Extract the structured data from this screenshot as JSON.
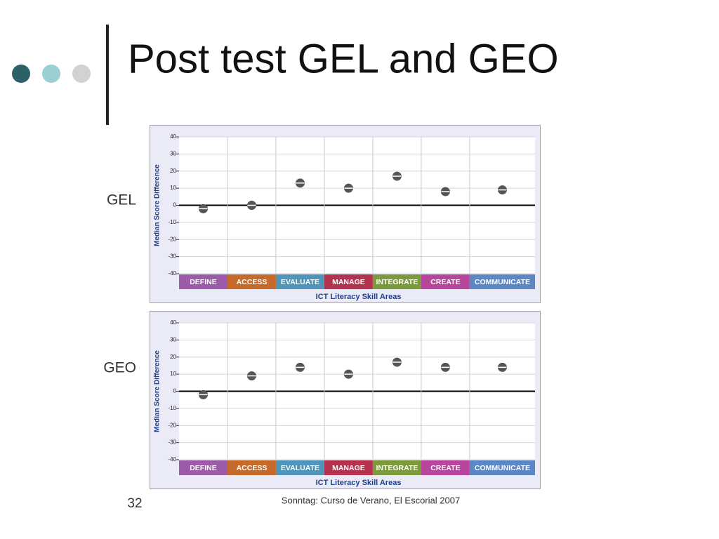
{
  "slide": {
    "title": "Post test GEL and GEO",
    "number": "32",
    "footer": "Sonntag: Curso de Verano, El Escorial 2007"
  },
  "chart_data": [
    {
      "type": "dot",
      "title": "GEL",
      "y_label": "Median Score Difference",
      "x_label": "ICT Literacy Skill Areas",
      "categories": [
        "DEFINE",
        "ACCESS",
        "EVALUATE",
        "MANAGE",
        "INTEGRATE",
        "CREATE",
        "COMMUNICATE"
      ],
      "category_colors": [
        "#9c5ba8",
        "#c66a2c",
        "#4e95b9",
        "#b5324f",
        "#7b9a3b",
        "#b7459b",
        "#5b87c4"
      ],
      "values": [
        -2,
        0,
        13,
        10,
        17,
        8,
        9
      ],
      "color": "#555555",
      "ylim": [
        -40,
        40
      ],
      "yticks": [
        -40,
        -30,
        -20,
        -10,
        0,
        10,
        20,
        30,
        40
      ],
      "grid": true
    },
    {
      "type": "dot",
      "title": "GEO",
      "y_label": "Median Score Difference",
      "x_label": "ICT Literacy Skill Areas",
      "categories": [
        "DEFINE",
        "ACCESS",
        "EVALUATE",
        "MANAGE",
        "INTEGRATE",
        "CREATE",
        "COMMUNICATE"
      ],
      "category_colors": [
        "#9c5ba8",
        "#c66a2c",
        "#4e95b9",
        "#b5324f",
        "#7b9a3b",
        "#b7459b",
        "#5b87c4"
      ],
      "values": [
        -2,
        9,
        14,
        10,
        17,
        14,
        14
      ],
      "color": "#555555",
      "ylim": [
        -40,
        40
      ],
      "yticks": [
        -40,
        -30,
        -20,
        -10,
        0,
        10,
        20,
        30,
        40
      ],
      "grid": true
    }
  ]
}
